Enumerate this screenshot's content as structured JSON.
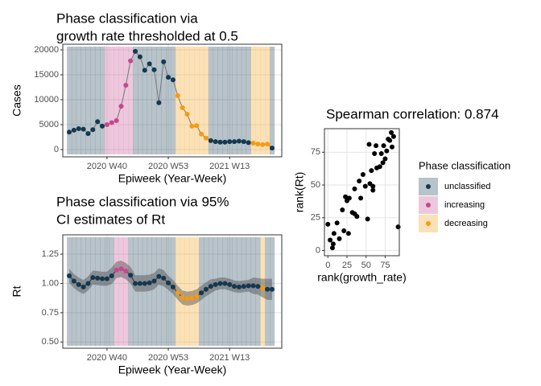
{
  "chart_data": [
    {
      "type": "line",
      "title": [
        "Phase classification via",
        "growth rate thresholded at 0.5"
      ],
      "xlabel": "Epiweek (Year-Week)",
      "ylabel": "Cases",
      "legend_title": "Phase classification",
      "categories": [
        null,
        null,
        null,
        null,
        null,
        null,
        null,
        null,
        "2020 W40",
        null,
        null,
        null,
        null,
        null,
        null,
        null,
        null,
        null,
        null,
        null,
        null,
        "2020 W53",
        null,
        null,
        null,
        null,
        null,
        null,
        null,
        null,
        null,
        null,
        null,
        null,
        "2021 W13",
        null,
        null,
        null,
        null,
        null,
        null,
        null,
        null,
        null
      ],
      "ylim": [
        -1450,
        21130
      ],
      "yticks": [
        0,
        5000,
        10000,
        15000,
        20000
      ],
      "grid": true,
      "series": [
        {
          "name": "unclassified",
          "color": "#14384f",
          "values": [
            3500,
            3900,
            4200,
            4100,
            3200,
            4000,
            5600,
            4700,
            null,
            null,
            null,
            null,
            null,
            null,
            19700,
            18600,
            15900,
            17200,
            16000,
            9400,
            17600,
            14500,
            14000,
            null,
            null,
            null,
            null,
            null,
            null,
            null,
            1800,
            1600,
            1500,
            1500,
            1600,
            1600,
            1700,
            1600,
            1400,
            null,
            null,
            null,
            null,
            300
          ]
        },
        {
          "name": "increasing",
          "color": "#c5488f",
          "values": [
            null,
            null,
            null,
            null,
            null,
            null,
            null,
            null,
            5000,
            5400,
            5800,
            8700,
            12900,
            17800,
            null,
            null,
            null,
            null,
            null,
            null,
            null,
            null,
            null,
            null,
            null,
            null,
            null,
            null,
            null,
            null,
            null,
            null,
            null,
            null,
            null,
            null,
            null,
            null,
            null,
            null,
            null,
            null,
            null,
            null
          ]
        },
        {
          "name": "decreasing",
          "color": "#f39c12",
          "values": [
            null,
            null,
            null,
            null,
            null,
            null,
            null,
            null,
            null,
            null,
            null,
            null,
            null,
            null,
            null,
            null,
            null,
            null,
            null,
            null,
            null,
            null,
            null,
            10800,
            8400,
            7100,
            4700,
            4800,
            3100,
            2300,
            null,
            null,
            null,
            null,
            null,
            null,
            null,
            null,
            null,
            1300,
            1100,
            1000,
            1100,
            null
          ]
        }
      ]
    },
    {
      "type": "line",
      "title": [
        "Phase classification via 95%",
        "CI estimates of Rt"
      ],
      "xlabel": "Epiweek (Year-Week)",
      "ylabel": "Rt",
      "categories": [
        null,
        null,
        null,
        null,
        null,
        null,
        null,
        null,
        "2020 W40",
        null,
        null,
        null,
        null,
        null,
        null,
        null,
        null,
        null,
        null,
        null,
        null,
        "2020 W53",
        null,
        null,
        null,
        null,
        null,
        null,
        null,
        null,
        null,
        null,
        null,
        null,
        "2021 W13",
        null,
        null,
        null,
        null,
        null,
        null,
        null,
        null,
        null
      ],
      "ylim": [
        0.447,
        1.415
      ],
      "yticks": [
        {
          "value": 0.5,
          "label": "0.50"
        },
        0.75,
        {
          "value": 1,
          "label": "1.00"
        },
        1.25
      ],
      "grid": true,
      "series": [
        {
          "color": "#14384f",
          "values": [
            1.065,
            1.02,
            0.99,
            0.97,
            1,
            1.05,
            1.045,
            1.04,
            1.04,
            1.065,
            null,
            null,
            null,
            1.07,
            1,
            1,
            1,
            1.005,
            1.02,
            1.06,
            1.045,
            1.005,
            0.97,
            null,
            null,
            null,
            null,
            null,
            0.92,
            0.95,
            0.975,
            0.99,
            1,
            1,
            0.99,
            0.975,
            0.97,
            0.975,
            0.98,
            0.98,
            0.975,
            null,
            0.95,
            0.95
          ]
        },
        {
          "color": "#c5488f",
          "values": [
            null,
            null,
            null,
            null,
            null,
            null,
            null,
            null,
            null,
            null,
            1.115,
            1.125,
            1.105,
            null,
            null,
            null,
            null,
            null,
            null,
            null,
            null,
            null,
            null,
            null,
            null,
            null,
            null,
            null,
            null,
            null,
            null,
            null,
            null,
            null,
            null,
            null,
            null,
            null,
            null,
            null,
            null,
            null,
            null,
            null
          ]
        },
        {
          "color": "#f39c12",
          "values": [
            null,
            null,
            null,
            null,
            null,
            null,
            null,
            null,
            null,
            null,
            null,
            null,
            null,
            null,
            null,
            null,
            null,
            null,
            null,
            null,
            null,
            null,
            null,
            0.92,
            0.88,
            0.87,
            0.875,
            0.89,
            null,
            null,
            null,
            null,
            null,
            null,
            null,
            null,
            null,
            null,
            null,
            null,
            null,
            0.96,
            null,
            null
          ]
        }
      ],
      "ci_lower": [
        1.005,
        0.96,
        0.93,
        0.91,
        0.94,
        0.99,
        0.985,
        0.98,
        0.98,
        0.995,
        1.045,
        1.055,
        1.035,
        1.0,
        0.93,
        0.93,
        0.93,
        0.935,
        0.95,
        0.99,
        0.975,
        0.945,
        0.91,
        0.86,
        0.82,
        0.81,
        0.815,
        0.83,
        0.86,
        0.89,
        0.915,
        0.94,
        0.95,
        0.95,
        0.94,
        0.925,
        0.92,
        0.925,
        0.93,
        0.91,
        0.905,
        0.88,
        0.86,
        0.86
      ],
      "ci_upper": [
        1.125,
        1.08,
        1.05,
        1.03,
        1.06,
        1.11,
        1.105,
        1.1,
        1.1,
        1.135,
        1.185,
        1.195,
        1.175,
        1.14,
        1.07,
        1.07,
        1.07,
        1.075,
        1.09,
        1.13,
        1.115,
        1.065,
        1.03,
        0.98,
        0.94,
        0.93,
        0.935,
        0.95,
        0.98,
        1.01,
        1.035,
        1.04,
        1.05,
        1.05,
        1.04,
        1.025,
        1.02,
        1.025,
        1.03,
        1.05,
        1.045,
        1.04,
        1.04,
        1.04
      ]
    },
    {
      "type": "scatter",
      "title": "Spearman correlation: 0.874",
      "xlabel": "rank(growth_rate)",
      "ylabel": "rank(Rt)",
      "xlim": [
        -4.5,
        93.5
      ],
      "ylim": [
        -4,
        93
      ],
      "xticks": [
        0,
        25,
        50,
        75
      ],
      "yticks": [
        0,
        25,
        50,
        75
      ],
      "grid": true,
      "color": "#000000",
      "x": [
        0,
        3,
        6,
        8,
        12,
        7,
        15,
        19,
        21,
        23,
        25,
        28,
        27,
        32,
        35,
        38,
        35,
        41,
        43,
        46,
        49,
        52,
        54,
        55,
        57,
        59,
        61,
        63,
        64,
        68,
        72,
        70,
        73,
        75,
        77,
        79,
        81,
        83,
        84,
        86,
        92,
        59
      ],
      "y": [
        20,
        8,
        2,
        13,
        21,
        5,
        9,
        31,
        15,
        41,
        38,
        40,
        13,
        29,
        28,
        26,
        47,
        53,
        40,
        58,
        49,
        24,
        81,
        51,
        61,
        46,
        74,
        80,
        63,
        64,
        67,
        74,
        80,
        70,
        76,
        85,
        84,
        90,
        79,
        87,
        18,
        49
      ]
    }
  ]
}
